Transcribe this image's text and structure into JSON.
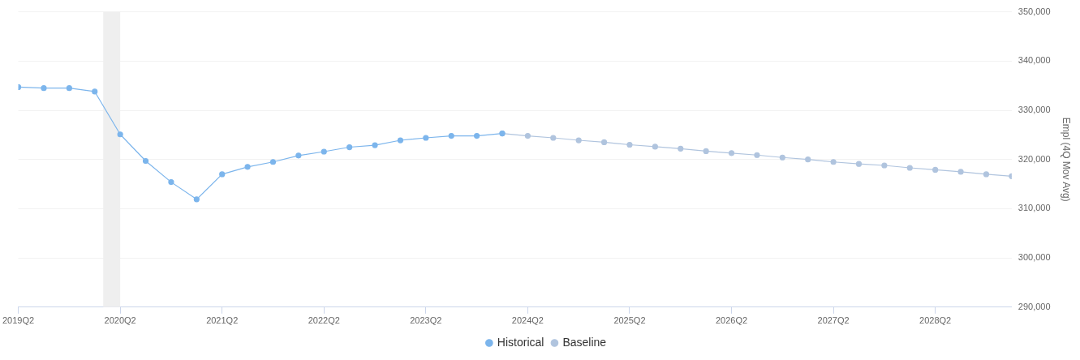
{
  "chart_data": {
    "type": "line",
    "ylabel": "Empl (4Q Mov Avg)",
    "series": [
      {
        "name": "Historical",
        "color": "#7cb5ec",
        "x": [
          "2019-04",
          "2019-07",
          "2019-10",
          "2020-01",
          "2020-04",
          "2020-07",
          "2020-10",
          "2021-01",
          "2021-04",
          "2021-07",
          "2021-10",
          "2022-01",
          "2022-04",
          "2022-07",
          "2022-10",
          "2023-01",
          "2023-04",
          "2023-07",
          "2023-10",
          "2024-01"
        ],
        "values": [
          334700,
          334500,
          334500,
          333800,
          325100,
          319700,
          315400,
          311900,
          317000,
          318500,
          319500,
          320800,
          321600,
          322500,
          322900,
          323900,
          324400,
          324800,
          324800,
          325300
        ]
      },
      {
        "name": "Baseline",
        "color": "#b0c4de",
        "x": [
          "2024-01",
          "2024-04",
          "2024-07",
          "2024-10",
          "2025-01",
          "2025-04",
          "2025-07",
          "2025-10",
          "2026-01",
          "2026-04",
          "2026-07",
          "2026-10",
          "2027-01",
          "2027-04",
          "2027-07",
          "2027-10",
          "2028-01",
          "2028-04",
          "2028-07",
          "2028-10",
          "2029-01"
        ],
        "values": [
          325300,
          324800,
          324400,
          323900,
          323500,
          323000,
          322600,
          322200,
          321700,
          321300,
          320900,
          320400,
          320000,
          319500,
          319100,
          318800,
          318300,
          317900,
          317500,
          317000,
          316600
        ]
      }
    ],
    "xlim": [
      "2019-04",
      "2029-01"
    ],
    "xticks": [
      {
        "value": "2019-04",
        "label": "2019Q2"
      },
      {
        "value": "2020-04",
        "label": "2020Q2"
      },
      {
        "value": "2021-04",
        "label": "2021Q2"
      },
      {
        "value": "2022-04",
        "label": "2022Q2"
      },
      {
        "value": "2023-04",
        "label": "2023Q2"
      },
      {
        "value": "2024-04",
        "label": "2024Q2"
      },
      {
        "value": "2025-04",
        "label": "2025Q2"
      },
      {
        "value": "2026-04",
        "label": "2026Q2"
      },
      {
        "value": "2027-04",
        "label": "2027Q2"
      },
      {
        "value": "2028-04",
        "label": "2028Q2"
      }
    ],
    "ylim": [
      290000,
      350000
    ],
    "yticks": [
      {
        "value": 290000,
        "label": "290,000"
      },
      {
        "value": 300000,
        "label": "300,000"
      },
      {
        "value": 310000,
        "label": "310,000"
      },
      {
        "value": 320000,
        "label": "320,000"
      },
      {
        "value": 330000,
        "label": "330,000"
      },
      {
        "value": 340000,
        "label": "340,000"
      },
      {
        "value": 350000,
        "label": "350,000"
      }
    ],
    "bands": [
      {
        "axis": "x",
        "from": "2020-02",
        "to": "2020-04",
        "color": "#efefef"
      }
    ],
    "grid": "y",
    "legend": "bottom",
    "marker": "circle",
    "line_style": "solid"
  }
}
